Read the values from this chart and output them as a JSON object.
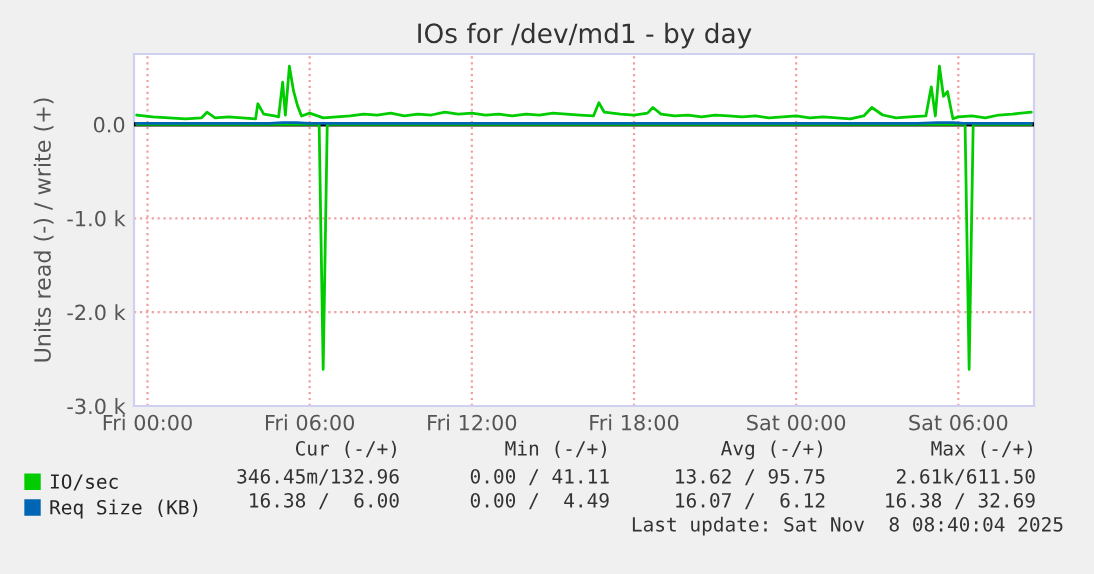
{
  "chart_data": {
    "type": "line",
    "title": "IOs for /dev/md1 - by day",
    "ylabel": "Units read (-) / write (+)",
    "series": [
      {
        "name": "IO/sec",
        "color": "#00cc00",
        "x": [
          "2025-11-06T23:36",
          "2025-11-07T00:12",
          "2025-11-07T00:48",
          "2025-11-07T01:24",
          "2025-11-07T02:00",
          "2025-11-07T02:12",
          "2025-11-07T02:30",
          "2025-11-07T03:00",
          "2025-11-07T03:30",
          "2025-11-07T04:00",
          "2025-11-07T04:05",
          "2025-11-07T04:18",
          "2025-11-07T04:42",
          "2025-11-07T04:51",
          "2025-11-07T05:00",
          "2025-11-07T05:06",
          "2025-11-07T05:15",
          "2025-11-07T05:24",
          "2025-11-07T05:33",
          "2025-11-07T05:42",
          "2025-11-07T06:00",
          "2025-11-07T06:30",
          "2025-11-07T07:00",
          "2025-11-07T07:30",
          "2025-11-07T08:00",
          "2025-11-07T08:30",
          "2025-11-07T09:00",
          "2025-11-07T09:30",
          "2025-11-07T10:00",
          "2025-11-07T10:30",
          "2025-11-07T11:00",
          "2025-11-07T11:30",
          "2025-11-07T12:00",
          "2025-11-07T12:30",
          "2025-11-07T13:00",
          "2025-11-07T13:30",
          "2025-11-07T14:00",
          "2025-11-07T14:30",
          "2025-11-07T15:00",
          "2025-11-07T15:30",
          "2025-11-07T16:00",
          "2025-11-07T16:30",
          "2025-11-07T16:42",
          "2025-11-07T16:54",
          "2025-11-07T17:30",
          "2025-11-07T18:00",
          "2025-11-07T18:30",
          "2025-11-07T18:42",
          "2025-11-07T19:00",
          "2025-11-07T19:30",
          "2025-11-07T20:00",
          "2025-11-07T20:30",
          "2025-11-07T21:00",
          "2025-11-07T21:30",
          "2025-11-07T22:00",
          "2025-11-07T22:30",
          "2025-11-07T23:00",
          "2025-11-07T23:30",
          "2025-11-08T00:00",
          "2025-11-08T00:30",
          "2025-11-08T01:00",
          "2025-11-08T01:30",
          "2025-11-08T02:00",
          "2025-11-08T02:30",
          "2025-11-08T02:48",
          "2025-11-08T03:12",
          "2025-11-08T03:42",
          "2025-11-08T04:12",
          "2025-11-08T04:48",
          "2025-11-08T05:00",
          "2025-11-08T05:09",
          "2025-11-08T05:18",
          "2025-11-08T05:27",
          "2025-11-08T05:36",
          "2025-11-08T05:48",
          "2025-11-08T06:00",
          "2025-11-08T06:30",
          "2025-11-08T07:00",
          "2025-11-08T07:30",
          "2025-11-08T08:00",
          "2025-11-08T08:42"
        ],
        "values": [
          100,
          80,
          70,
          60,
          70,
          130,
          70,
          80,
          70,
          60,
          220,
          110,
          90,
          80,
          450,
          100,
          620,
          360,
          200,
          90,
          120,
          70,
          80,
          90,
          110,
          100,
          120,
          90,
          110,
          100,
          130,
          110,
          120,
          100,
          110,
          90,
          110,
          100,
          120,
          110,
          100,
          90,
          230,
          130,
          110,
          100,
          120,
          180,
          110,
          90,
          100,
          80,
          100,
          90,
          80,
          90,
          70,
          80,
          90,
          70,
          80,
          70,
          60,
          90,
          180,
          100,
          70,
          80,
          90,
          400,
          90,
          620,
          300,
          350,
          60,
          80,
          90,
          70,
          100,
          110,
          130
        ]
      },
      {
        "color": "#00cc00",
        "x": [
          "2025-11-06T23:36",
          "2025-11-07T06:21",
          "2025-11-07T06:30",
          "2025-11-07T06:39",
          "2025-11-08T06:15",
          "2025-11-08T06:24",
          "2025-11-08T06:33",
          "2025-11-08T08:42"
        ],
        "values": [
          0,
          0,
          -2610,
          0,
          0,
          -2610,
          0,
          0
        ]
      },
      {
        "name": "Req Size (KB)",
        "color": "#0066b3",
        "x": [
          "2025-11-06T23:36",
          "2025-11-07T04:30",
          "2025-11-07T05:00",
          "2025-11-07T05:30",
          "2025-11-07T06:00",
          "2025-11-08T04:30",
          "2025-11-08T05:12",
          "2025-11-08T05:48",
          "2025-11-08T06:12",
          "2025-11-08T08:42"
        ],
        "values": [
          10,
          10,
          20,
          20,
          10,
          10,
          20,
          20,
          10,
          10
        ]
      }
    ],
    "xlim": [
      "2025-11-06T23:30",
      "2025-11-08T08:48"
    ],
    "xticks": [
      {
        "value": "2025-11-07T00:00",
        "label": "Fri 00:00"
      },
      {
        "value": "2025-11-07T06:00",
        "label": "Fri 06:00"
      },
      {
        "value": "2025-11-07T12:00",
        "label": "Fri 12:00"
      },
      {
        "value": "2025-11-07T18:00",
        "label": "Fri 18:00"
      },
      {
        "value": "2025-11-08T00:00",
        "label": "Sat 00:00"
      },
      {
        "value": "2025-11-08T06:00",
        "label": "Sat 06:00"
      }
    ],
    "ylim": [
      -3000,
      750
    ],
    "yticks": [
      {
        "value": -3000,
        "label": "-3.0 k"
      },
      {
        "value": -2000,
        "label": "-2.0 k"
      },
      {
        "value": -1000,
        "label": "-1.0 k"
      },
      {
        "value": 0,
        "label": "0.0"
      }
    ],
    "ref_lines": [
      {
        "axis": "y",
        "value": 0,
        "color": "#000000"
      }
    ],
    "grid": true,
    "legend": "bottom",
    "annotations": [
      "Cur (-/+)",
      "Min (-/+)",
      "Avg (-/+)",
      "Max (-/+)",
      "346.45m/132.96",
      "0.00 / 41.11",
      "13.62 / 95.75",
      "2.61k/611.50",
      "16.38 /  6.00",
      "0.00 /  4.49",
      "16.07 /  6.12",
      "16.38 / 32.69",
      "Last update: Sat Nov  8 08:40:04 2025"
    ]
  }
}
